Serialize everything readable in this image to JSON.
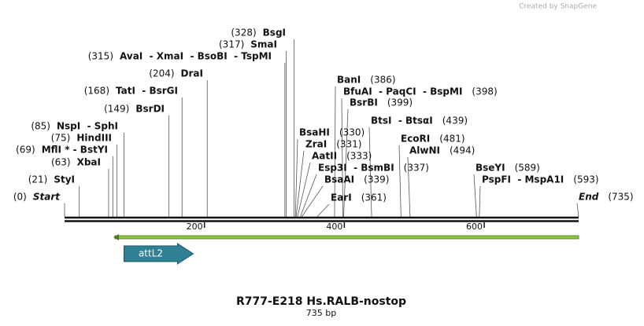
{
  "header": {
    "credit": "Created by SnapGene"
  },
  "map": {
    "length": 735,
    "ruler_ticks": [
      200,
      400,
      600
    ],
    "left_labels": [
      {
        "site": 0,
        "pos": "(0)",
        "name": "Start"
      },
      {
        "site": 21,
        "pos": "(21)",
        "name": "StyI"
      },
      {
        "site": 63,
        "pos": "(63)",
        "name": "XbaI"
      },
      {
        "site": 69,
        "pos": "(69)",
        "name": "MflI * - BstYI"
      },
      {
        "site": 75,
        "pos": "(75)",
        "name": "HindIII"
      },
      {
        "site": 85,
        "pos": "(85)",
        "name": "NspI  - SphI"
      },
      {
        "site": 149,
        "pos": "(149)",
        "name": "BsrDI"
      },
      {
        "site": 168,
        "pos": "(168)",
        "name": "TatI  - BsrGI"
      },
      {
        "site": 204,
        "pos": "(204)",
        "name": "DraI"
      },
      {
        "site": 315,
        "pos": "(315)",
        "name": "AvaI  - XmaI  - BsoBI  - TspMI"
      },
      {
        "site": 317,
        "pos": "(317)",
        "name": "SmaI"
      },
      {
        "site": 328,
        "pos": "(328)",
        "name": "BsgI"
      }
    ],
    "right_labels": [
      {
        "site": 386,
        "pos": "(386)",
        "name": "BanI"
      },
      {
        "site": 398,
        "pos": "(398)",
        "name": "BfuAI  - PaqCI  - BspMI"
      },
      {
        "site": 399,
        "pos": "(399)",
        "name": "BsrBI"
      },
      {
        "site": 439,
        "pos": "(439)",
        "name": "BtsI  - BtsαI"
      },
      {
        "site": 330,
        "pos": "(330)",
        "name": "BsaHI"
      },
      {
        "site": 331,
        "pos": "(331)",
        "name": "ZraI"
      },
      {
        "site": 333,
        "pos": "(333)",
        "name": "AatII"
      },
      {
        "site": 337,
        "pos": "(337)",
        "name": "Esp3I  - BsmBI"
      },
      {
        "site": 339,
        "pos": "(339)",
        "name": "BsaAI"
      },
      {
        "site": 361,
        "pos": "(361)",
        "name": "EarI"
      },
      {
        "site": 481,
        "pos": "(481)",
        "name": "EcoRI"
      },
      {
        "site": 494,
        "pos": "(494)",
        "name": "AlwNI"
      },
      {
        "site": 589,
        "pos": "(589)",
        "name": "BseYI"
      },
      {
        "site": 593,
        "pos": "(593)",
        "name": "PspFI  - MspA1I"
      },
      {
        "site": 735,
        "pos": "(735)",
        "name": "End"
      }
    ],
    "feature": {
      "label": "attL2",
      "start": 85,
      "end": 184
    },
    "primer": {
      "start": 72,
      "end": 735
    }
  },
  "footer": {
    "title": "R777-E218 Hs.RALB-nostop",
    "size": "735 bp"
  }
}
